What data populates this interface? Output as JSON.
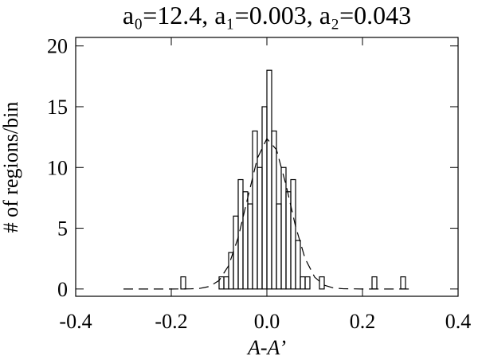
{
  "chart_data": {
    "type": "histogram",
    "title": "a₀=12.4, a₁=0.003, a₂=0.043",
    "x_label": "A-A’",
    "y_label": "# of regions/bin",
    "bins": [
      -0.2,
      -0.19,
      -0.18,
      -0.17,
      -0.16,
      -0.15,
      -0.14,
      -0.13,
      -0.12,
      -0.11,
      -0.1,
      -0.09,
      -0.08,
      -0.07,
      -0.06,
      -0.05,
      -0.04,
      -0.03,
      -0.02,
      -0.01,
      0,
      0.01,
      0.02,
      0.03,
      0.04,
      0.05,
      0.06,
      0.07,
      0.08,
      0.09,
      0.1,
      0.11,
      0.12,
      0.13,
      0.14,
      0.15,
      0.16,
      0.17,
      0.18,
      0.19,
      0.2,
      0.21,
      0.22,
      0.23,
      0.24,
      0.25,
      0.26,
      0.27,
      0.28,
      0.29,
      0.3
    ],
    "values": [
      0,
      0,
      1,
      0,
      0,
      0,
      0,
      0,
      0,
      0,
      1,
      1,
      3,
      6,
      9,
      8,
      7,
      13,
      10,
      15,
      18,
      13,
      7,
      10,
      8,
      9,
      4,
      1,
      1,
      0,
      0,
      1,
      0,
      0,
      0,
      0,
      0,
      0,
      0,
      0,
      0,
      0,
      1,
      0,
      0,
      0,
      0,
      0,
      1,
      0
    ],
    "color": "#000000",
    "fit": {
      "x": [
        -0.3,
        -0.2,
        -0.16,
        -0.14,
        -0.12,
        -0.1,
        -0.08,
        -0.06,
        -0.04,
        -0.02,
        0,
        0.02,
        0.04,
        0.06,
        0.08,
        0.1,
        0.12,
        0.14,
        0.16,
        0.2,
        0.3
      ],
      "values": [
        0,
        0,
        0.01,
        0.05,
        0.21,
        0.7,
        1.92,
        4.24,
        7.52,
        10.75,
        12.37,
        11.47,
        8.57,
        5.15,
        2.5,
        0.97,
        0.31,
        0.08,
        0.02,
        0,
        0
      ],
      "dashed": true
    },
    "xlim": [
      -0.4,
      0.4
    ],
    "xticks": [
      -0.4,
      -0.2,
      {
        "value": 0,
        "label": "0.0"
      },
      0.2,
      0.4
    ],
    "ylim": [
      -0.6,
      20.7
    ],
    "yticks": [
      0,
      5,
      10,
      15,
      20
    ]
  }
}
